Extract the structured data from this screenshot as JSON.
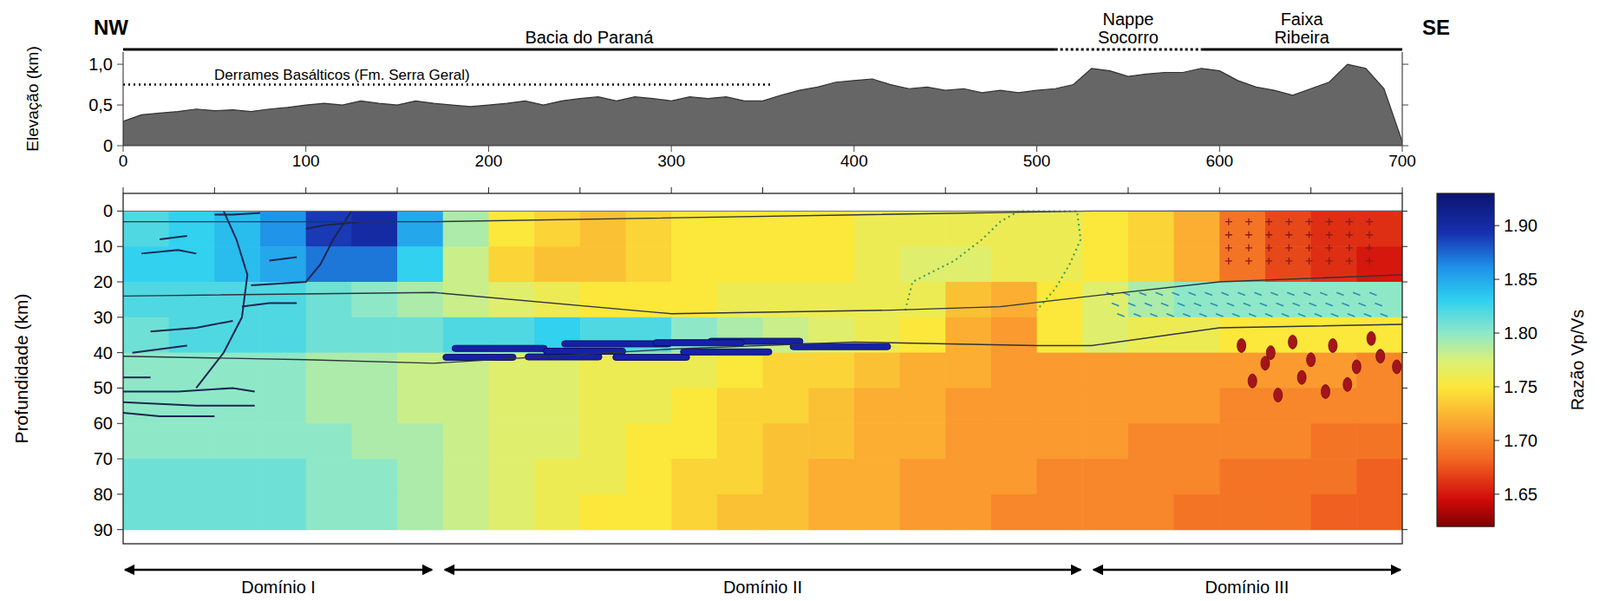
{
  "chart_data": [
    {
      "type": "area",
      "ylabel": "Elevação (km)",
      "side_labels": [
        "NW",
        "SE"
      ],
      "x": [
        0,
        10,
        20,
        30,
        40,
        50,
        60,
        70,
        80,
        90,
        100,
        110,
        120,
        130,
        140,
        150,
        160,
        170,
        180,
        190,
        200,
        210,
        220,
        230,
        240,
        250,
        260,
        270,
        280,
        290,
        300,
        310,
        320,
        330,
        340,
        350,
        360,
        370,
        380,
        390,
        400,
        410,
        420,
        430,
        440,
        450,
        460,
        470,
        480,
        490,
        500,
        510,
        520,
        530,
        540,
        550,
        560,
        570,
        580,
        590,
        600,
        610,
        620,
        630,
        640,
        650,
        660,
        670,
        680,
        690,
        700
      ],
      "values": [
        0.3,
        0.38,
        0.4,
        0.42,
        0.45,
        0.43,
        0.44,
        0.42,
        0.45,
        0.47,
        0.5,
        0.52,
        0.5,
        0.55,
        0.52,
        0.5,
        0.55,
        0.52,
        0.5,
        0.48,
        0.5,
        0.52,
        0.55,
        0.5,
        0.55,
        0.58,
        0.6,
        0.55,
        0.6,
        0.58,
        0.55,
        0.6,
        0.58,
        0.6,
        0.55,
        0.55,
        0.62,
        0.68,
        0.72,
        0.78,
        0.8,
        0.82,
        0.75,
        0.7,
        0.72,
        0.68,
        0.7,
        0.65,
        0.68,
        0.65,
        0.68,
        0.7,
        0.75,
        0.95,
        0.92,
        0.85,
        0.88,
        0.9,
        0.9,
        0.95,
        0.92,
        0.8,
        0.72,
        0.68,
        0.62,
        0.7,
        0.78,
        1.0,
        0.95,
        0.7,
        0.05
      ],
      "color": "#666666",
      "xlim": [
        0,
        700
      ],
      "xticks": [
        0,
        100,
        200,
        300,
        400,
        500,
        600,
        700
      ],
      "ylim": [
        0,
        1.15
      ],
      "yticks": [
        0,
        {
          "value": 0.5,
          "label": "0,5"
        },
        {
          "value": 1,
          "label": "1,0"
        }
      ],
      "regions": [
        {
          "label": "Bacia do Paraná",
          "from": 0,
          "to": 510,
          "line_style": "solid"
        },
        {
          "label": "Nappe Socorro",
          "from": 510,
          "to": 590,
          "line_style": "dotted"
        },
        {
          "label": "Faixa Ribeira",
          "from": 590,
          "to": 700,
          "line_style": "solid"
        }
      ],
      "annotation": {
        "text": "Derrames Basálticos (Fm. Serra Geral)",
        "from": 0,
        "to": 355,
        "value": 0.75,
        "line_style": "dotted"
      }
    },
    {
      "type": "heatmap",
      "ylabel": "Profundidade (km)",
      "tick_labels": "y",
      "x_edges": [
        0,
        25,
        50,
        75,
        100,
        125,
        150,
        175,
        200,
        225,
        250,
        275,
        300,
        325,
        350,
        375,
        400,
        425,
        450,
        475,
        500,
        525,
        550,
        575,
        600,
        625,
        650,
        675,
        700
      ],
      "y_edges": [
        0,
        10,
        20,
        30,
        40,
        50,
        60,
        70,
        80,
        90
      ],
      "values": [
        [
          1.82,
          1.83,
          1.84,
          1.86,
          1.89,
          1.9,
          1.85,
          1.79,
          1.75,
          1.74,
          1.73,
          1.74,
          1.75,
          1.75,
          1.75,
          1.75,
          1.76,
          1.76,
          1.76,
          1.76,
          1.76,
          1.75,
          1.74,
          1.72,
          1.69,
          1.67,
          1.66,
          1.66
        ],
        [
          1.83,
          1.83,
          1.84,
          1.85,
          1.87,
          1.87,
          1.83,
          1.78,
          1.74,
          1.73,
          1.73,
          1.74,
          1.75,
          1.75,
          1.75,
          1.75,
          1.76,
          1.77,
          1.77,
          1.76,
          1.76,
          1.75,
          1.74,
          1.72,
          1.69,
          1.67,
          1.66,
          1.65
        ],
        [
          1.82,
          1.82,
          1.82,
          1.82,
          1.81,
          1.8,
          1.79,
          1.78,
          1.77,
          1.76,
          1.75,
          1.75,
          1.75,
          1.76,
          1.76,
          1.76,
          1.76,
          1.76,
          1.73,
          1.72,
          1.75,
          1.77,
          1.79,
          1.8,
          1.8,
          1.8,
          1.8,
          1.8
        ],
        [
          1.81,
          1.82,
          1.82,
          1.82,
          1.81,
          1.81,
          1.81,
          1.82,
          1.82,
          1.83,
          1.82,
          1.82,
          1.8,
          1.79,
          1.78,
          1.77,
          1.76,
          1.75,
          1.72,
          1.71,
          1.75,
          1.77,
          1.76,
          1.76,
          1.75,
          1.75,
          1.75,
          1.75
        ],
        [
          1.8,
          1.8,
          1.8,
          1.8,
          1.79,
          1.79,
          1.78,
          1.78,
          1.77,
          1.77,
          1.76,
          1.76,
          1.76,
          1.75,
          1.74,
          1.74,
          1.73,
          1.72,
          1.72,
          1.71,
          1.71,
          1.71,
          1.71,
          1.71,
          1.71,
          1.71,
          1.71,
          1.7
        ],
        [
          1.8,
          1.8,
          1.8,
          1.8,
          1.79,
          1.79,
          1.78,
          1.78,
          1.77,
          1.77,
          1.76,
          1.76,
          1.75,
          1.74,
          1.74,
          1.73,
          1.72,
          1.72,
          1.71,
          1.71,
          1.71,
          1.71,
          1.71,
          1.71,
          1.7,
          1.7,
          1.7,
          1.7
        ],
        [
          1.8,
          1.8,
          1.8,
          1.8,
          1.8,
          1.79,
          1.79,
          1.78,
          1.77,
          1.77,
          1.76,
          1.75,
          1.75,
          1.74,
          1.73,
          1.73,
          1.72,
          1.72,
          1.71,
          1.71,
          1.71,
          1.71,
          1.7,
          1.7,
          1.7,
          1.7,
          1.69,
          1.69
        ],
        [
          1.81,
          1.81,
          1.81,
          1.81,
          1.8,
          1.8,
          1.79,
          1.78,
          1.77,
          1.76,
          1.76,
          1.75,
          1.74,
          1.74,
          1.73,
          1.72,
          1.72,
          1.71,
          1.71,
          1.71,
          1.7,
          1.7,
          1.7,
          1.7,
          1.69,
          1.69,
          1.69,
          1.68
        ],
        [
          1.81,
          1.81,
          1.81,
          1.81,
          1.8,
          1.8,
          1.79,
          1.78,
          1.77,
          1.76,
          1.75,
          1.75,
          1.74,
          1.73,
          1.73,
          1.72,
          1.72,
          1.71,
          1.71,
          1.7,
          1.7,
          1.7,
          1.7,
          1.69,
          1.69,
          1.69,
          1.68,
          1.68
        ]
      ],
      "xlim": [
        0,
        700
      ],
      "xticks": [
        0,
        50,
        100,
        150,
        200,
        250,
        300,
        350,
        400,
        450,
        500,
        550,
        600,
        650,
        700
      ],
      "ylim": [
        -5,
        94
      ],
      "yticks": [
        0,
        10,
        20,
        30,
        40,
        50,
        60,
        70,
        80,
        90
      ],
      "colorbar": {
        "label": "Razão Vp/Vs",
        "range": [
          1.62,
          1.93
        ],
        "ticks": [
          1.65,
          {
            "value": 1.7,
            "label": "1.70"
          },
          1.75,
          {
            "value": 1.8,
            "label": "1.80"
          },
          1.85,
          {
            "value": 1.9,
            "label": "1.90"
          }
        ]
      },
      "boundaries": [
        {
          "x": [
            0,
            170,
            530,
            700
          ],
          "depth": [
            3,
            3,
            0,
            0
          ]
        },
        {
          "x": [
            0,
            170,
            300,
            420,
            480,
            530,
            600,
            700
          ],
          "depth": [
            24,
            23,
            29,
            28,
            27,
            24,
            20,
            18
          ]
        },
        {
          "x": [
            0,
            100,
            170,
            300,
            400,
            500,
            530,
            600,
            700
          ],
          "depth": [
            41,
            42,
            43,
            39,
            37,
            38,
            38,
            33,
            32
          ]
        }
      ],
      "domains": [
        {
          "label": "Domínio I",
          "from": 0,
          "to": 170
        },
        {
          "label": "Domínio II",
          "from": 175,
          "to": 525
        },
        {
          "label": "Domínio III",
          "from": 530,
          "to": 700
        }
      ]
    }
  ]
}
